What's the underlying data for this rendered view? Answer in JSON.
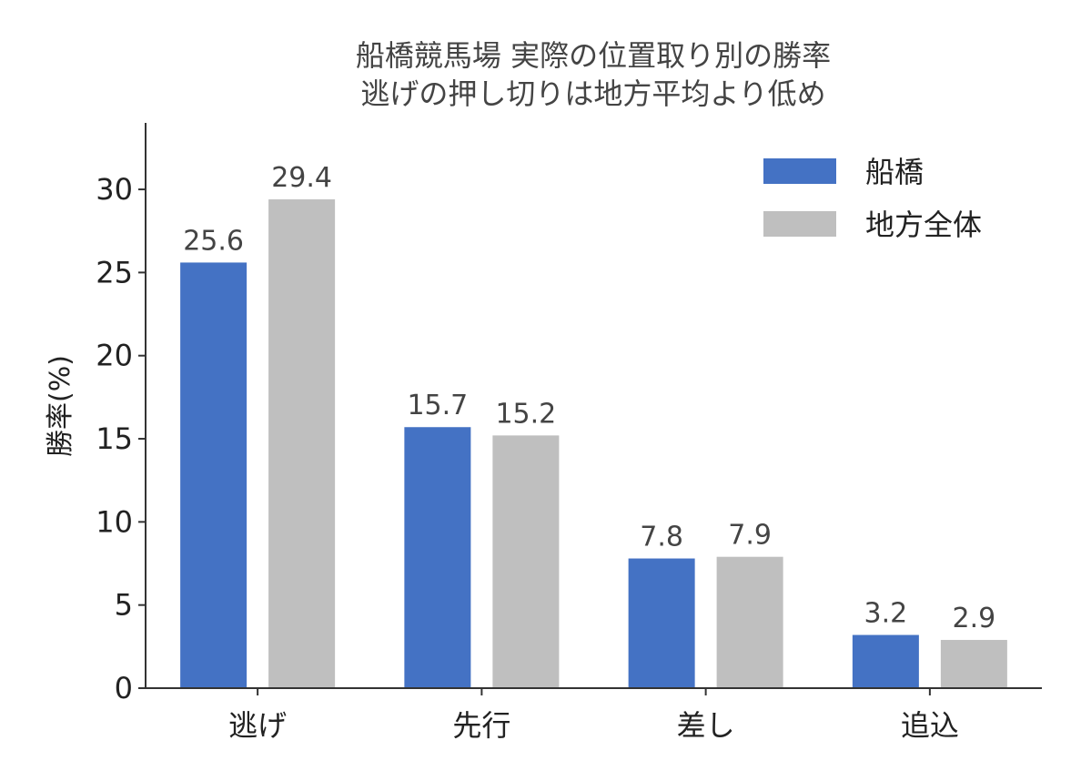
{
  "chart_data": {
    "type": "bar",
    "title": [
      "船橋競馬場 実際の位置取り別の勝率",
      "逃げの押し切りは地方平均より低め"
    ],
    "categories": [
      "逃げ",
      "先行",
      "差し",
      "追込"
    ],
    "series": [
      {
        "name": "船橋",
        "values": [
          25.6,
          15.7,
          7.8,
          3.2
        ],
        "color": "#4472c4"
      },
      {
        "name": "地方全体",
        "values": [
          29.4,
          15.2,
          7.9,
          2.9
        ],
        "color": "#bfbfbf"
      }
    ],
    "xlabel": "",
    "ylabel": "勝率(%)",
    "ylim": [
      0,
      34
    ],
    "yticks": [
      0,
      5,
      10,
      15,
      20,
      25,
      30
    ],
    "grid": false,
    "legend": "top-right",
    "data_labels": true
  }
}
